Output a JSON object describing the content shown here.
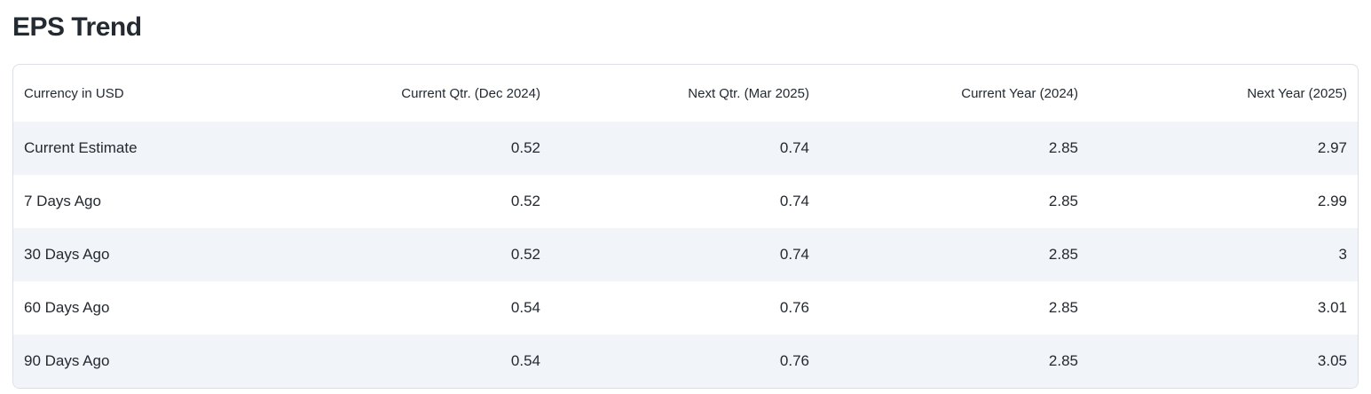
{
  "page": {
    "title": "EPS Trend"
  },
  "colors": {
    "stripe": "#f1f4f9",
    "card_border": "#dcdfe4",
    "text": "#232a31",
    "background": "#ffffff"
  },
  "table": {
    "columns": [
      "Currency in USD",
      "Current Qtr. (Dec 2024)",
      "Next Qtr. (Mar 2025)",
      "Current Year (2024)",
      "Next Year (2025)"
    ],
    "rows": [
      {
        "label": "Current Estimate",
        "values": [
          "0.52",
          "0.74",
          "2.85",
          "2.97"
        ]
      },
      {
        "label": "7 Days Ago",
        "values": [
          "0.52",
          "0.74",
          "2.85",
          "2.99"
        ]
      },
      {
        "label": "30 Days Ago",
        "values": [
          "0.52",
          "0.74",
          "2.85",
          "3"
        ]
      },
      {
        "label": "60 Days Ago",
        "values": [
          "0.54",
          "0.76",
          "2.85",
          "3.01"
        ]
      },
      {
        "label": "90 Days Ago",
        "values": [
          "0.54",
          "0.76",
          "2.85",
          "3.05"
        ]
      }
    ]
  }
}
